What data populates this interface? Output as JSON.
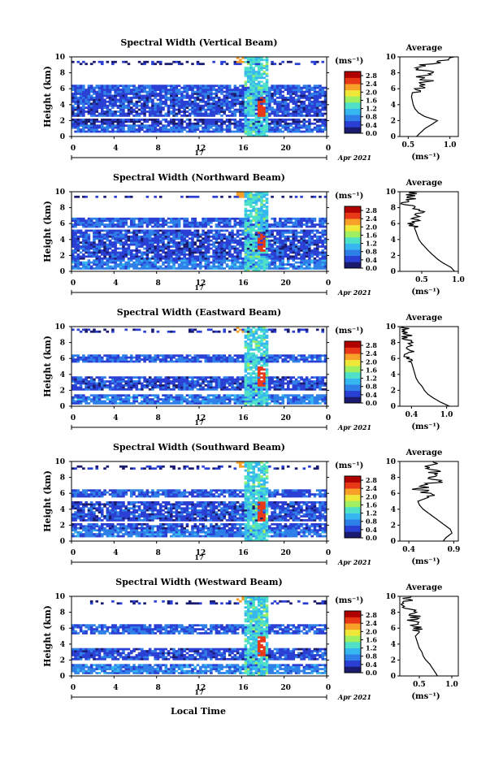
{
  "figure": {
    "common_xlabel": "Local Time",
    "date_label": "Apr 2021",
    "day_label": "17",
    "unit_label": "(ms⁻¹)",
    "colorbar_ticks": [
      "2.8",
      "2.4",
      "2.0",
      "1.6",
      "1.2",
      "0.8",
      "0.4",
      "0.0"
    ],
    "colormap": [
      "#ffffff",
      "#1a1a6e",
      "#2a3fd4",
      "#2f7fe8",
      "#37b7f0",
      "#4fe0c8",
      "#9fef60",
      "#f0e838",
      "#f8a028",
      "#e83818",
      "#b00000"
    ],
    "ylabel_main": "Height (km)",
    "xticks": [
      "0",
      "4",
      "8",
      "12",
      "16",
      "20",
      "0"
    ],
    "yticks": [
      "0",
      "2",
      "4",
      "6",
      "8",
      "10"
    ],
    "avg_title": "Average",
    "avg_unit": "(ms⁻¹)"
  },
  "chart_data": [
    {
      "type": "heatmap",
      "title": "Spectral Width (Vertical Beam)",
      "xlabel": "",
      "ylabel": "Height (km)",
      "xlim": [
        0,
        24
      ],
      "ylim": [
        0,
        10
      ],
      "color_range": [
        0.0,
        2.8
      ],
      "layers": [
        [
          0.6,
          2.2,
          0.4
        ],
        [
          2.4,
          5.4,
          0.5
        ],
        [
          5.6,
          6.6,
          0.6
        ],
        [
          9.0,
          9.6,
          0.3
        ]
      ],
      "average_profile": {
        "xlim": [
          0.4,
          1.1
        ],
        "xticks": [
          "0.5",
          "1.0"
        ],
        "height": [
          0,
          0.5,
          1,
          1.5,
          2,
          2.5,
          3,
          3.5,
          4,
          4.5,
          5,
          5.5,
          6,
          6.5,
          7,
          7.5,
          8,
          8.5,
          9,
          9.5,
          10
        ],
        "value": [
          0.6,
          0.65,
          0.7,
          0.78,
          0.85,
          0.7,
          0.62,
          0.58,
          0.56,
          0.55,
          0.54,
          0.55,
          0.6,
          0.68,
          0.72,
          0.65,
          0.8,
          0.6,
          0.7,
          0.9,
          1.05
        ]
      }
    },
    {
      "type": "heatmap",
      "title": "Spectral Width (Northward Beam)",
      "xlabel": "",
      "ylabel": "Height (km)",
      "xlim": [
        0,
        24
      ],
      "ylim": [
        0,
        10
      ],
      "color_range": [
        0.0,
        2.8
      ],
      "layers": [
        [
          0.2,
          2.4,
          0.5
        ],
        [
          2.6,
          5.2,
          0.5
        ],
        [
          5.6,
          6.8,
          0.6
        ],
        [
          9.2,
          9.6,
          0.3
        ]
      ],
      "average_profile": {
        "xlim": [
          0.2,
          1.0
        ],
        "xticks": [
          "0.5",
          "1.0"
        ],
        "height": [
          0,
          0.5,
          1,
          1.5,
          2,
          2.5,
          3,
          3.5,
          4,
          4.5,
          5,
          5.5,
          6,
          6.5,
          7,
          7.5,
          8,
          8.5,
          9,
          9.5,
          10
        ],
        "value": [
          0.95,
          0.9,
          0.8,
          0.72,
          0.66,
          0.6,
          0.55,
          0.5,
          0.46,
          0.44,
          0.42,
          0.4,
          0.38,
          0.4,
          0.42,
          0.5,
          0.36,
          0.3,
          0.35,
          0.33,
          0.38
        ]
      }
    },
    {
      "type": "heatmap",
      "title": "Spectral Width (Eastward Beam)",
      "xlabel": "",
      "ylabel": "Height (km)",
      "xlim": [
        0,
        24
      ],
      "ylim": [
        0,
        10
      ],
      "color_range": [
        0.0,
        2.8
      ],
      "layers": [
        [
          0.2,
          1.6,
          0.5
        ],
        [
          2.0,
          3.8,
          0.5
        ],
        [
          5.6,
          6.6,
          0.6
        ],
        [
          9.2,
          9.8,
          0.3
        ]
      ],
      "average_profile": {
        "xlim": [
          0.2,
          1.2
        ],
        "xticks": [
          "0.4",
          "1.0"
        ],
        "height": [
          0,
          0.5,
          1,
          1.5,
          2,
          2.5,
          3,
          3.5,
          4,
          4.5,
          5,
          5.5,
          6,
          6.5,
          7,
          7.5,
          8,
          8.5,
          9,
          9.5,
          10
        ],
        "value": [
          1.05,
          0.9,
          0.78,
          0.68,
          0.62,
          0.58,
          0.52,
          0.48,
          0.46,
          0.44,
          0.42,
          0.4,
          0.36,
          0.34,
          0.4,
          0.32,
          0.38,
          0.3,
          0.34,
          0.28,
          0.3
        ]
      }
    },
    {
      "type": "heatmap",
      "title": "Spectral Width (Southward Beam)",
      "xlabel": "",
      "ylabel": "Height (km)",
      "xlim": [
        0,
        24
      ],
      "ylim": [
        0,
        10
      ],
      "color_range": [
        0.0,
        2.8
      ],
      "layers": [
        [
          0.6,
          2.2,
          0.5
        ],
        [
          2.4,
          5.0,
          0.5
        ],
        [
          5.6,
          6.4,
          0.6
        ],
        [
          9.0,
          9.6,
          0.3
        ]
      ],
      "average_profile": {
        "xlim": [
          0.3,
          0.95
        ],
        "xticks": [
          "0.4",
          "0.9"
        ],
        "height": [
          0,
          0.5,
          1,
          1.5,
          2,
          2.5,
          3,
          3.5,
          4,
          4.5,
          5,
          5.5,
          6,
          6.5,
          7,
          7.5,
          8,
          8.5,
          9,
          9.5,
          10
        ],
        "value": [
          0.78,
          0.82,
          0.88,
          0.86,
          0.8,
          0.74,
          0.68,
          0.62,
          0.56,
          0.52,
          0.5,
          0.62,
          0.58,
          0.52,
          0.6,
          0.72,
          0.68,
          0.74,
          0.6,
          0.66,
          0.7
        ]
      }
    },
    {
      "type": "heatmap",
      "title": "Spectral Width (Westward Beam)",
      "xlabel": "Local Time",
      "ylabel": "Height (km)",
      "xlim": [
        0,
        24
      ],
      "ylim": [
        0,
        10
      ],
      "color_range": [
        0.0,
        2.8
      ],
      "layers": [
        [
          0.2,
          1.6,
          0.5
        ],
        [
          2.0,
          3.6,
          0.5
        ],
        [
          5.2,
          6.6,
          0.6
        ],
        [
          9.0,
          9.4,
          0.3
        ]
      ],
      "average_profile": {
        "xlim": [
          0.2,
          1.1
        ],
        "xticks": [
          "0.5",
          "1.0"
        ],
        "height": [
          0,
          0.5,
          1,
          1.5,
          2,
          2.5,
          3,
          3.5,
          4,
          4.5,
          5,
          5.5,
          6,
          6.5,
          7,
          7.5,
          8,
          8.5,
          9,
          9.5,
          10
        ],
        "value": [
          0.78,
          0.74,
          0.7,
          0.66,
          0.6,
          0.56,
          0.54,
          0.5,
          0.48,
          0.46,
          0.44,
          0.5,
          0.46,
          0.44,
          0.4,
          0.44,
          0.38,
          0.34,
          0.3,
          0.32,
          0.3
        ]
      }
    }
  ]
}
